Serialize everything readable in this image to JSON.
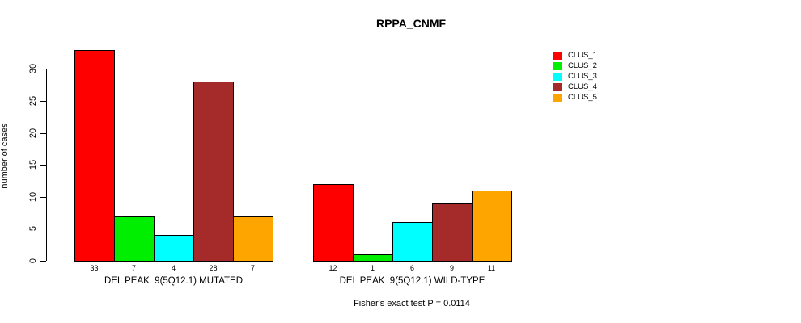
{
  "chart_data": {
    "type": "bar",
    "title": "RPPA_CNMF",
    "ylabel": "number of cases",
    "xlabel": "",
    "ylim": [
      0,
      33
    ],
    "yticks": [
      0,
      5,
      10,
      15,
      20,
      25,
      30
    ],
    "grid": false,
    "legend_position": "top-right",
    "categories": [
      "DEL PEAK  9(5Q12.1) MUTATED",
      "DEL PEAK  9(5Q12.1) WILD-TYPE"
    ],
    "series": [
      {
        "name": "CLUS_1",
        "color": "#FF0000",
        "values": [
          33,
          12
        ]
      },
      {
        "name": "CLUS_2",
        "color": "#00EE00",
        "values": [
          7,
          1
        ]
      },
      {
        "name": "CLUS_3",
        "color": "#00FFFF",
        "values": [
          4,
          6
        ]
      },
      {
        "name": "CLUS_4",
        "color": "#A52A2A",
        "values": [
          28,
          9
        ]
      },
      {
        "name": "CLUS_5",
        "color": "#FFA500",
        "values": [
          7,
          11
        ]
      }
    ],
    "bar_border_color": "#000000",
    "annotation": "Fisher's exact test P = 0.0114"
  }
}
